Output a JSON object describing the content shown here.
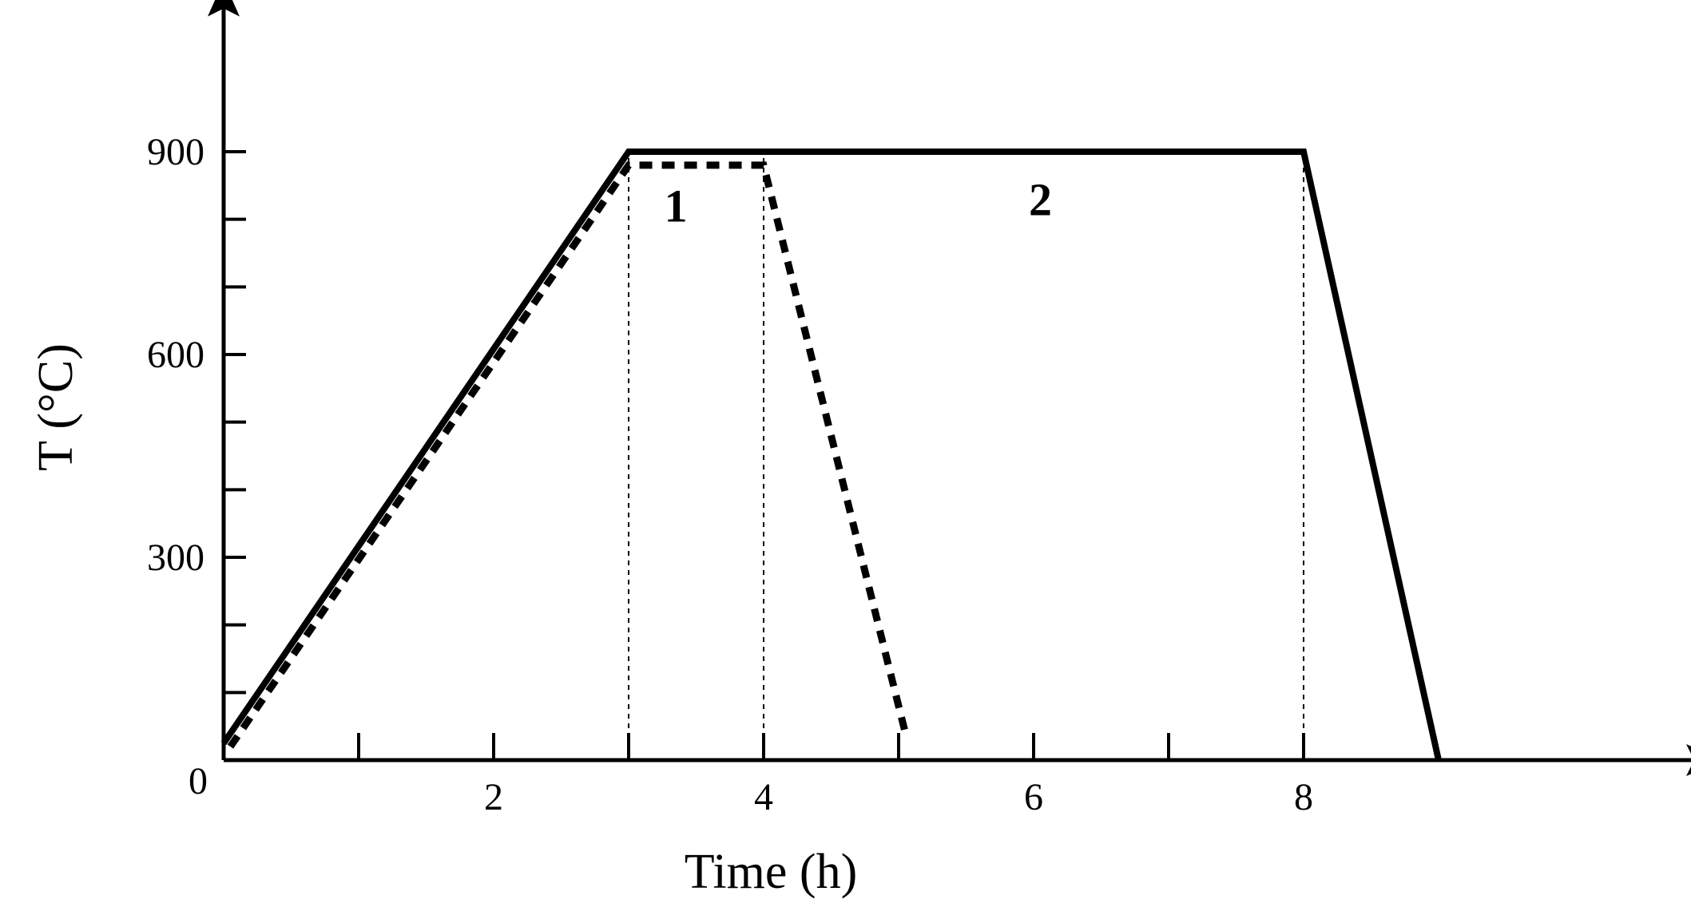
{
  "chart_data": {
    "type": "line",
    "title": "",
    "xlabel": "Time (h)",
    "ylabel": "T (°C)",
    "xlim": [
      0,
      11
    ],
    "ylim": [
      0,
      1100
    ],
    "x_ticks_major": [
      2,
      4,
      6,
      8
    ],
    "x_ticks_minor": [
      1,
      3,
      5,
      7
    ],
    "y_ticks_major": [
      0,
      300,
      600,
      900
    ],
    "y_ticks_minor": [
      100,
      200,
      400,
      500,
      700,
      800
    ],
    "origin_label": "0",
    "grid": false,
    "legend": null,
    "series": [
      {
        "style": "solid",
        "color": "#000000",
        "x": [
          0,
          3,
          8,
          9
        ],
        "y": [
          25,
          900,
          900,
          0
        ]
      },
      {
        "style": "dotted",
        "color": "#000000",
        "x": [
          0.05,
          3,
          4,
          5.05
        ],
        "y": [
          20,
          880,
          880,
          40
        ]
      }
    ],
    "reference_lines": [
      {
        "x": 3,
        "style": "thin-dashed"
      },
      {
        "x": 4,
        "style": "thin-dashed"
      },
      {
        "x": 8,
        "style": "thin-dashed"
      }
    ],
    "annotations": [
      {
        "text": "1",
        "x": 3.35,
        "y": 820
      },
      {
        "text": "2",
        "x": 6.05,
        "y": 830
      }
    ]
  }
}
